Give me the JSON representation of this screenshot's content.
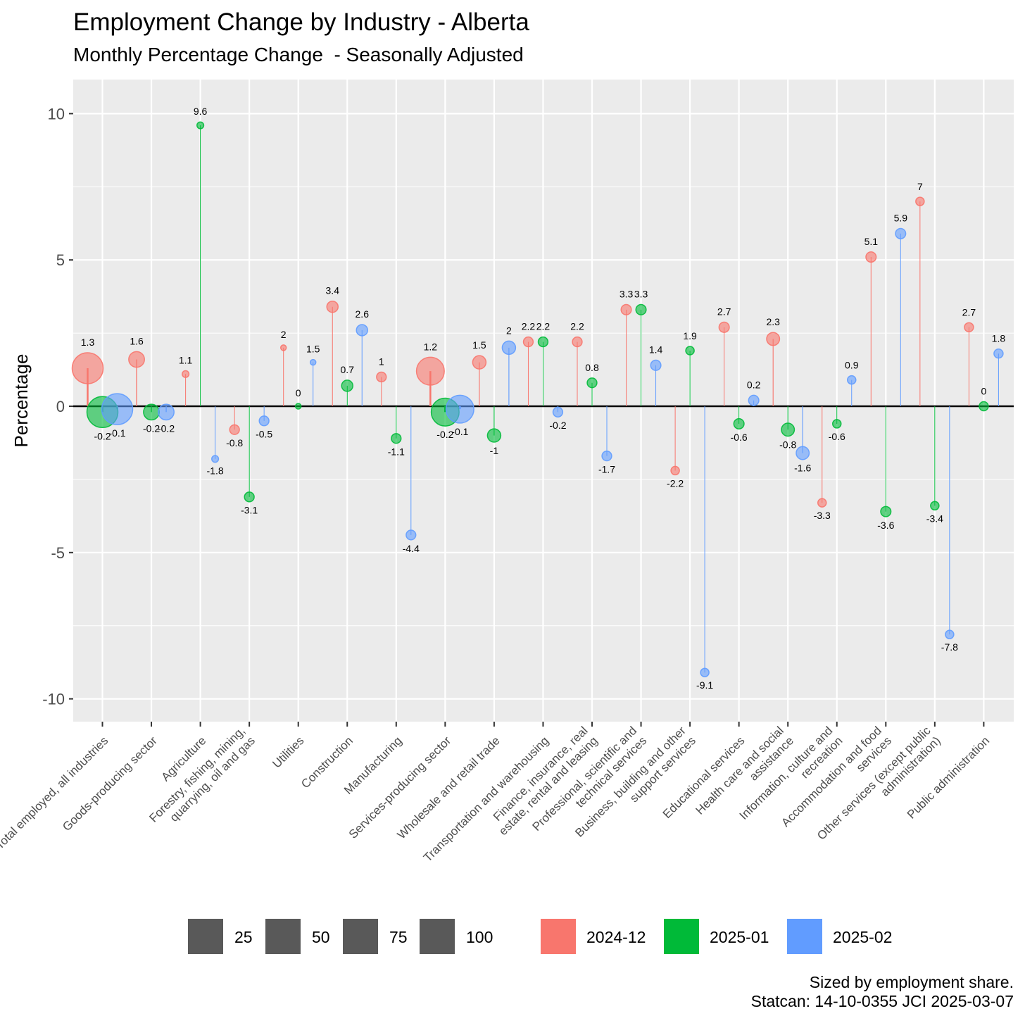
{
  "chart_data": {
    "type": "scatter",
    "title": "Employment Change by Industry - Alberta",
    "subtitle": "Monthly Percentage Change  - Seasonally Adjusted",
    "ylabel": "Percentage",
    "xlabel": "",
    "ylim": [
      -11,
      11
    ],
    "yticks": [
      10,
      5,
      0,
      -5,
      -10
    ],
    "ytick_labels": [
      "10",
      "5",
      "0",
      "-5",
      "-10"
    ],
    "grid": true,
    "legend_position": "bottom",
    "categories": [
      "Total employed, all industries",
      "Goods-producing sector",
      "Agriculture",
      "Forestry, fishing, mining, quarrying, oil and gas",
      "Utilities",
      "Construction",
      "Manufacturing",
      "Services-producing sector",
      "Wholesale and retail trade",
      "Transportation and warehousing",
      "Finance, insurance, real estate, rental and leasing",
      "Professional, scientific and technical services",
      "Business, building and other support services",
      "Educational services",
      "Health care and social assistance",
      "Information, culture and recreation",
      "Accommodation and food services",
      "Other services (except public administration)",
      "Public administration"
    ],
    "category_labels": [
      [
        "Total employed, all industries"
      ],
      [
        "Goods-producing sector"
      ],
      [
        "Agriculture"
      ],
      [
        "Forestry, fishing, mining,",
        "quarrying, oil and gas"
      ],
      [
        "Utilities"
      ],
      [
        "Construction"
      ],
      [
        "Manufacturing"
      ],
      [
        "Services-producing sector"
      ],
      [
        "Wholesale and retail trade"
      ],
      [
        "Transportation and warehousing"
      ],
      [
        "Finance, insurance, real",
        "estate, rental and leasing"
      ],
      [
        "Professional, scientific and",
        "technical services"
      ],
      [
        "Business, building and other",
        "support services"
      ],
      [
        "Educational services"
      ],
      [
        "Health care and social",
        "assistance"
      ],
      [
        "Information, culture and",
        "recreation"
      ],
      [
        "Accommodation and food",
        "services"
      ],
      [
        "Other services (except public",
        "administration)"
      ],
      [
        "Public administration"
      ]
    ],
    "series": [
      {
        "name": "2024-12",
        "color": "#F8766D",
        "values": [
          1.3,
          1.6,
          1.1,
          -0.8,
          2,
          3.4,
          1,
          1.2,
          1.5,
          2.2,
          2.2,
          3.3,
          -2.2,
          2.7,
          2.3,
          -3.3,
          5.1,
          7,
          2.7
        ],
        "labels": [
          "1.3",
          "1.6",
          "1.1",
          "-0.8",
          "2",
          "3.4",
          "1",
          "1.2",
          "1.5",
          "2.2",
          "2.2",
          "3.3",
          "-2.2",
          "2.7",
          "2.3",
          "-3.3",
          "5.1",
          "7",
          "2.7"
        ]
      },
      {
        "name": "2025-01",
        "color": "#00BA38",
        "values": [
          -0.2,
          -0.2,
          9.6,
          -3.1,
          0,
          0.7,
          -1.1,
          -0.2,
          -1,
          2.2,
          0.8,
          3.3,
          1.9,
          -0.6,
          -0.8,
          -0.6,
          -3.6,
          -3.4,
          0
        ],
        "labels": [
          "-0.2",
          "-0.2",
          "9.6",
          "-3.1",
          "0",
          "0.7",
          "-1.1",
          "-0.2",
          "-1",
          "2.2",
          "0.8",
          "3.3",
          "1.9",
          "-0.6",
          "-0.8",
          "-0.6",
          "-3.6",
          "-3.4",
          "0"
        ]
      },
      {
        "name": "2025-02",
        "color": "#619CFF",
        "values": [
          -0.1,
          -0.2,
          -1.8,
          -0.5,
          1.5,
          2.6,
          -4.4,
          -0.1,
          2,
          -0.2,
          -1.7,
          1.4,
          -9.1,
          0.2,
          -1.6,
          0.9,
          5.9,
          -7.8,
          1.8
        ],
        "labels": [
          "-0.1",
          "-0.2",
          "-1.8",
          "-0.5",
          "1.5",
          "2.6",
          "-4.4",
          "-0.1",
          "2",
          "-0.2",
          "-1.7",
          "1.4",
          "-9.1",
          "0.2",
          "-1.6",
          "0.9",
          "5.9",
          "-7.8",
          "1.8"
        ]
      }
    ],
    "size_variable": "employment share",
    "employment_share": [
      100,
      21,
      2,
      6,
      1,
      9,
      6,
      79,
      14,
      6,
      6,
      7,
      4,
      7,
      13,
      4,
      7,
      4,
      5
    ],
    "size_legend": [
      {
        "value": 25,
        "label": "25"
      },
      {
        "value": 50,
        "label": "50"
      },
      {
        "value": 75,
        "label": "75"
      },
      {
        "value": 100,
        "label": "100"
      }
    ],
    "caption": [
      "Sized by employment share.",
      "Statcan: 14-10-0355 JCI 2025-03-07"
    ]
  }
}
